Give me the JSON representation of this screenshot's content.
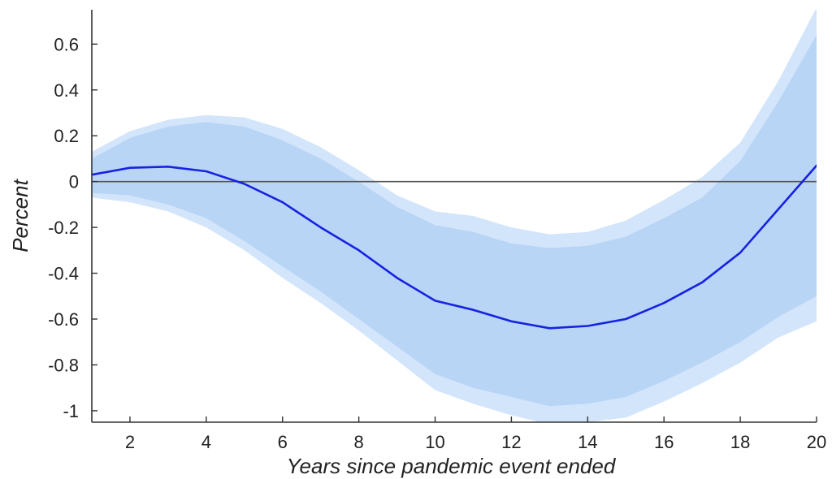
{
  "chart_data": {
    "type": "line",
    "xlabel": "Years since pandemic event ended",
    "ylabel": "Percent",
    "xlim": [
      1,
      20
    ],
    "ylim": [
      -1.05,
      0.75
    ],
    "x_ticks": [
      2,
      4,
      6,
      8,
      10,
      12,
      14,
      16,
      18,
      20
    ],
    "y_ticks": [
      0.6,
      0.4,
      0.2,
      0,
      -0.2,
      -0.4,
      -0.6,
      -0.8,
      -1
    ],
    "x_tick_labels": [
      "2",
      "4",
      "6",
      "8",
      "10",
      "12",
      "14",
      "16",
      "18",
      "20"
    ],
    "y_tick_labels": [
      "0.6",
      "0.4",
      "0.2",
      "0",
      "-0.2",
      "-0.4",
      "-0.6",
      "-0.8",
      "-1"
    ],
    "reference_line_y": 0,
    "grid": false,
    "x": [
      1,
      2,
      3,
      4,
      5,
      6,
      7,
      8,
      9,
      10,
      11,
      12,
      13,
      14,
      15,
      16,
      17,
      18,
      19,
      20
    ],
    "series": [
      {
        "values": [
          0.03,
          0.06,
          0.065,
          0.045,
          -0.01,
          -0.09,
          -0.2,
          -0.3,
          -0.42,
          -0.52,
          -0.56,
          -0.61,
          -0.64,
          -0.63,
          -0.6,
          -0.53,
          -0.44,
          -0.31,
          -0.12,
          0.07
        ]
      }
    ],
    "bands": [
      {
        "level": "outer",
        "upper": [
          0.13,
          0.22,
          0.27,
          0.29,
          0.28,
          0.23,
          0.15,
          0.05,
          -0.06,
          -0.13,
          -0.15,
          -0.2,
          -0.23,
          -0.22,
          -0.17,
          -0.08,
          0.02,
          0.17,
          0.44,
          0.76
        ],
        "lower": [
          -0.07,
          -0.09,
          -0.13,
          -0.2,
          -0.3,
          -0.42,
          -0.53,
          -0.65,
          -0.78,
          -0.91,
          -0.97,
          -1.02,
          -1.06,
          -1.05,
          -1.03,
          -0.96,
          -0.88,
          -0.79,
          -0.68,
          -0.61
        ]
      },
      {
        "level": "inner",
        "upper": [
          0.1,
          0.19,
          0.24,
          0.26,
          0.24,
          0.18,
          0.1,
          0.0,
          -0.11,
          -0.19,
          -0.22,
          -0.27,
          -0.29,
          -0.28,
          -0.24,
          -0.16,
          -0.07,
          0.09,
          0.35,
          0.64
        ],
        "lower": [
          -0.05,
          -0.06,
          -0.1,
          -0.16,
          -0.26,
          -0.37,
          -0.48,
          -0.6,
          -0.72,
          -0.84,
          -0.9,
          -0.94,
          -0.98,
          -0.97,
          -0.94,
          -0.87,
          -0.79,
          -0.7,
          -0.59,
          -0.5
        ]
      }
    ],
    "colors": {
      "line": "#1722e0",
      "outer_band": "#d3e5fb",
      "inner_band": "#b8d5f6",
      "zero_line": "#555555",
      "axis": "#333333"
    }
  }
}
